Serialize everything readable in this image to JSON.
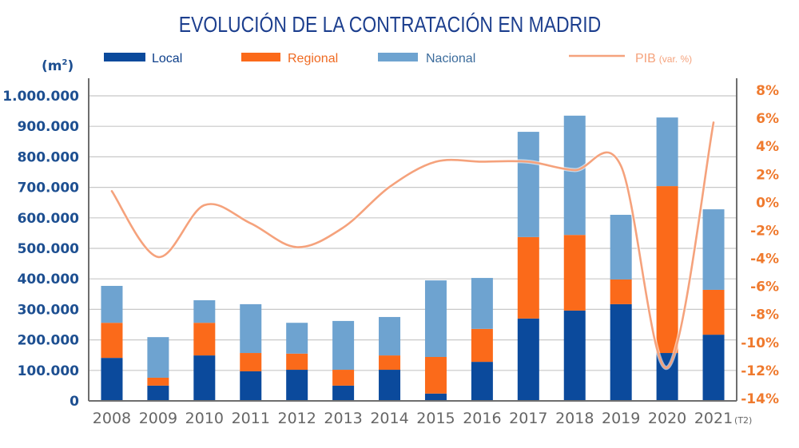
{
  "chart_data": {
    "type": "bar",
    "stacked": true,
    "title": "EVOLUCIÓN DE LA CONTRATACIÓN EN MADRID",
    "ylabel": "(m²)",
    "ylabel_base": "(m",
    "ylabel_sup": "2",
    "ylabel_close": ")",
    "y2label": "PIB (var. %)",
    "categories": [
      "2008",
      "2009",
      "2010",
      "2011",
      "2012",
      "2013",
      "2014",
      "2015",
      "2016",
      "2017",
      "2018",
      "2019",
      "2020",
      "2021"
    ],
    "last_category_suffix": "(T2)",
    "ylim": [
      0,
      1000000
    ],
    "y_ticks": [
      {
        "value": 0,
        "label": "0"
      },
      {
        "value": 100000,
        "label": "100.000"
      },
      {
        "value": 200000,
        "label": "200.000"
      },
      {
        "value": 300000,
        "label": "300.000"
      },
      {
        "value": 400000,
        "label": "400.000"
      },
      {
        "value": 500000,
        "label": "500.000"
      },
      {
        "value": 600000,
        "label": "600.000"
      },
      {
        "value": 700000,
        "label": "700.000"
      },
      {
        "value": 800000,
        "label": "800.000"
      },
      {
        "value": 900000,
        "label": "900.000"
      },
      {
        "value": 1000000,
        "label": "1.000.000"
      }
    ],
    "y2lim": [
      -14,
      8
    ],
    "y2_ticks": [
      {
        "value": 8,
        "label": "8%"
      },
      {
        "value": 6,
        "label": "6%"
      },
      {
        "value": 4,
        "label": "4%"
      },
      {
        "value": 2,
        "label": "2%"
      },
      {
        "value": 0,
        "label": "0%"
      },
      {
        "value": -2,
        "label": "-2%"
      },
      {
        "value": -4,
        "label": "-4%"
      },
      {
        "value": -6,
        "label": "-6%"
      },
      {
        "value": -8,
        "label": "-8%"
      },
      {
        "value": -10,
        "label": "-10%"
      },
      {
        "value": -12,
        "label": "-12%"
      },
      {
        "value": -14,
        "label": "-14%"
      }
    ],
    "grid": true,
    "legend_position": "top",
    "series": [
      {
        "name": "Local",
        "color": "#0b4a9c",
        "label_color": "#0d3f8a",
        "values": [
          141000,
          50000,
          149000,
          97000,
          102000,
          50000,
          102000,
          24000,
          128000,
          270000,
          296000,
          317000,
          157000,
          217000
        ]
      },
      {
        "name": "Regional",
        "color": "#fb6a1a",
        "label_color": "#ef6a22",
        "values": [
          115000,
          26000,
          107000,
          60000,
          53000,
          52000,
          47000,
          120000,
          108000,
          267000,
          248000,
          81000,
          547000,
          147000
        ]
      },
      {
        "name": "Nacional",
        "color": "#6ea3d0",
        "label_color": "#3c6c9c",
        "values": [
          121000,
          133000,
          74000,
          160000,
          101000,
          160000,
          126000,
          251000,
          167000,
          345000,
          391000,
          212000,
          225000,
          264000
        ]
      }
    ],
    "line_series": {
      "name": "PIB",
      "name_suffix": "(var. %)",
      "color": "#f5a27c",
      "axis": "right",
      "values": [
        0.8,
        -3.9,
        -0.2,
        -1.5,
        -3.2,
        -1.8,
        1.1,
        2.9,
        2.9,
        2.9,
        2.3,
        2.6,
        -11.8,
        5.7
      ]
    }
  }
}
